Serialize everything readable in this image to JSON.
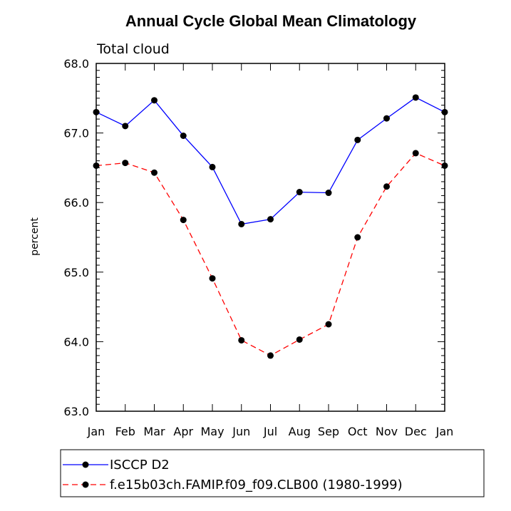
{
  "chart_data": {
    "type": "line",
    "title": "Annual Cycle Global Mean Climatology",
    "subtitle": "Total cloud",
    "xlabel": "",
    "ylabel": "percent",
    "categories": [
      "Jan",
      "Feb",
      "Mar",
      "Apr",
      "May",
      "Jun",
      "Jul",
      "Aug",
      "Sep",
      "Oct",
      "Nov",
      "Dec",
      "Jan"
    ],
    "ylim": [
      63.0,
      68.0
    ],
    "yticks": [
      "63.0",
      "64.0",
      "65.0",
      "66.0",
      "67.0",
      "68.0"
    ],
    "grid": false,
    "legend_position": "bottom-left",
    "series": [
      {
        "name": "ISCCP D2",
        "color": "#0000ff",
        "dash": "solid",
        "values": [
          67.3,
          67.1,
          67.47,
          66.96,
          66.51,
          65.69,
          65.76,
          66.15,
          66.14,
          66.9,
          67.21,
          67.51,
          67.3
        ]
      },
      {
        "name": "f.e15b03ch.FAMIP.f09_f09.CLB00 (1980-1999)",
        "color": "#ff0000",
        "dash": "dashed",
        "values": [
          66.53,
          66.57,
          66.43,
          65.75,
          64.91,
          64.02,
          63.8,
          64.03,
          64.25,
          65.5,
          66.23,
          66.71,
          66.53
        ]
      }
    ]
  }
}
